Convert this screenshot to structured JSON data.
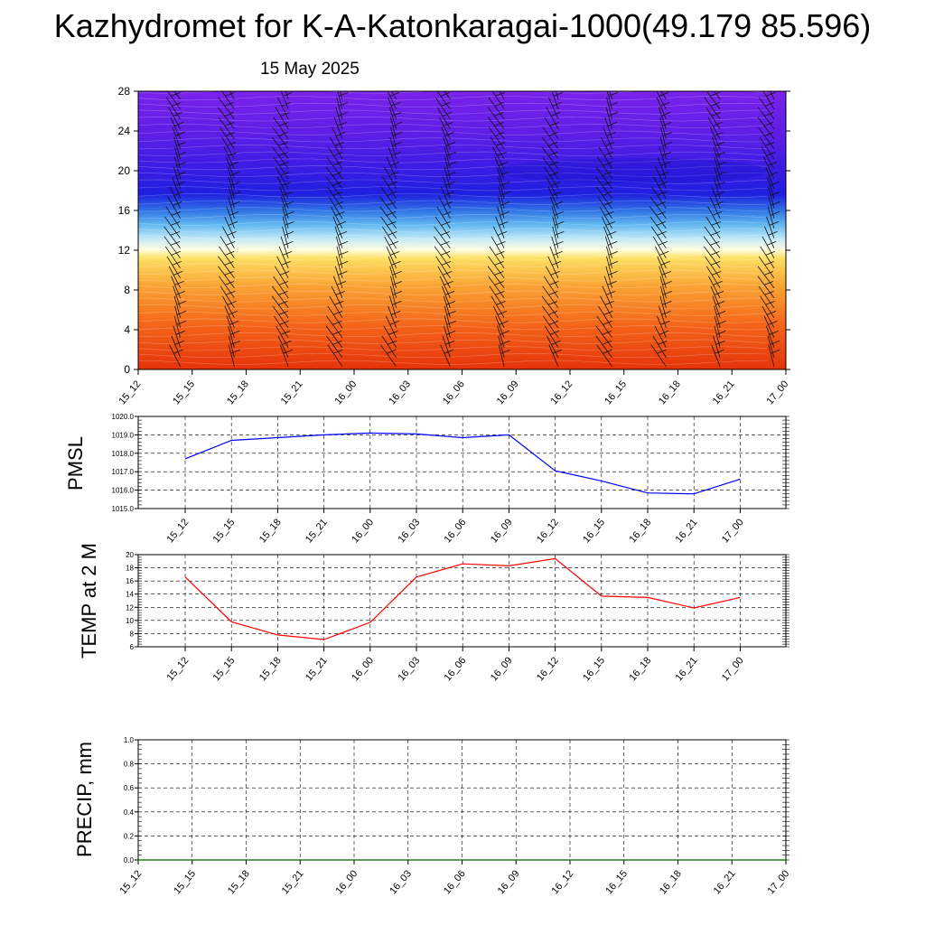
{
  "page": {
    "title": "Kazhydromet for K-A-Katonkaragai-1000(49.179 85.596)",
    "subtitle": "15 May 2025"
  },
  "chart_data": [
    {
      "type": "heatmap",
      "title": "",
      "xlabel": "",
      "ylabel": "",
      "x_ticks": [
        "15_12",
        "15_15",
        "15_18",
        "15_21",
        "16_00",
        "16_03",
        "16_06",
        "16_09",
        "16_12",
        "16_15",
        "16_18",
        "16_21",
        "17_00"
      ],
      "y_ticks": [
        0,
        4,
        8,
        12,
        16,
        20,
        24,
        28
      ],
      "ylim": [
        0,
        28
      ],
      "colors": [
        "#e63a0a",
        "#f58a1e",
        "#fcd24c",
        "#fffde0",
        "#9fdcf5",
        "#3a8fe8",
        "#1a1ae0",
        "#6a1ee8"
      ],
      "wind_barbs": true
    },
    {
      "type": "line",
      "title": "",
      "ylabel": "PMSL",
      "x": [
        "15_12",
        "15_15",
        "15_18",
        "15_21",
        "16_00",
        "16_03",
        "16_06",
        "16_09",
        "16_12",
        "16_15",
        "16_18",
        "16_21",
        "17_00"
      ],
      "series": [
        {
          "values": [
            1017.7,
            1018.7,
            1018.85,
            1019.0,
            1019.1,
            1019.05,
            1018.85,
            1019.0,
            1017.05,
            1016.5,
            1015.85,
            1015.8,
            1016.6
          ],
          "color": "#0000ff"
        }
      ],
      "ylim": [
        1015.0,
        1020.0
      ],
      "y_ticks": [
        "1015.0",
        "1016.0",
        "1017.0",
        "1018.0",
        "1019.0",
        "1020.0"
      ],
      "grid": true
    },
    {
      "type": "line",
      "title": "",
      "ylabel": "TEMP at 2 M",
      "x": [
        "15_12",
        "15_15",
        "15_18",
        "15_21",
        "16_00",
        "16_03",
        "16_06",
        "16_09",
        "16_12",
        "16_15",
        "16_18",
        "16_21",
        "17_00"
      ],
      "series": [
        {
          "values": [
            16.6,
            9.8,
            7.8,
            7.1,
            9.7,
            16.6,
            18.6,
            18.3,
            19.4,
            13.7,
            13.5,
            11.9,
            13.5
          ],
          "color": "#ff0000"
        }
      ],
      "ylim": [
        6,
        20
      ],
      "y_ticks": [
        "6",
        "8",
        "10",
        "12",
        "14",
        "16",
        "18",
        "20"
      ],
      "grid": true
    },
    {
      "type": "line",
      "title": "",
      "ylabel": "PRECIP, mm",
      "x": [
        "15_12",
        "15_15",
        "15_18",
        "15_21",
        "16_00",
        "16_03",
        "16_06",
        "16_09",
        "16_12",
        "16_15",
        "16_18",
        "16_21",
        "17_00"
      ],
      "series": [
        {
          "values": [
            0,
            0,
            0,
            0,
            0,
            0,
            0,
            0,
            0,
            0,
            0,
            0,
            0
          ],
          "color": "#006400"
        }
      ],
      "ylim": [
        0.0,
        1.0
      ],
      "y_ticks": [
        "0.0",
        "0.2",
        "0.4",
        "0.6",
        "0.8",
        "1.0"
      ],
      "grid": true
    }
  ]
}
